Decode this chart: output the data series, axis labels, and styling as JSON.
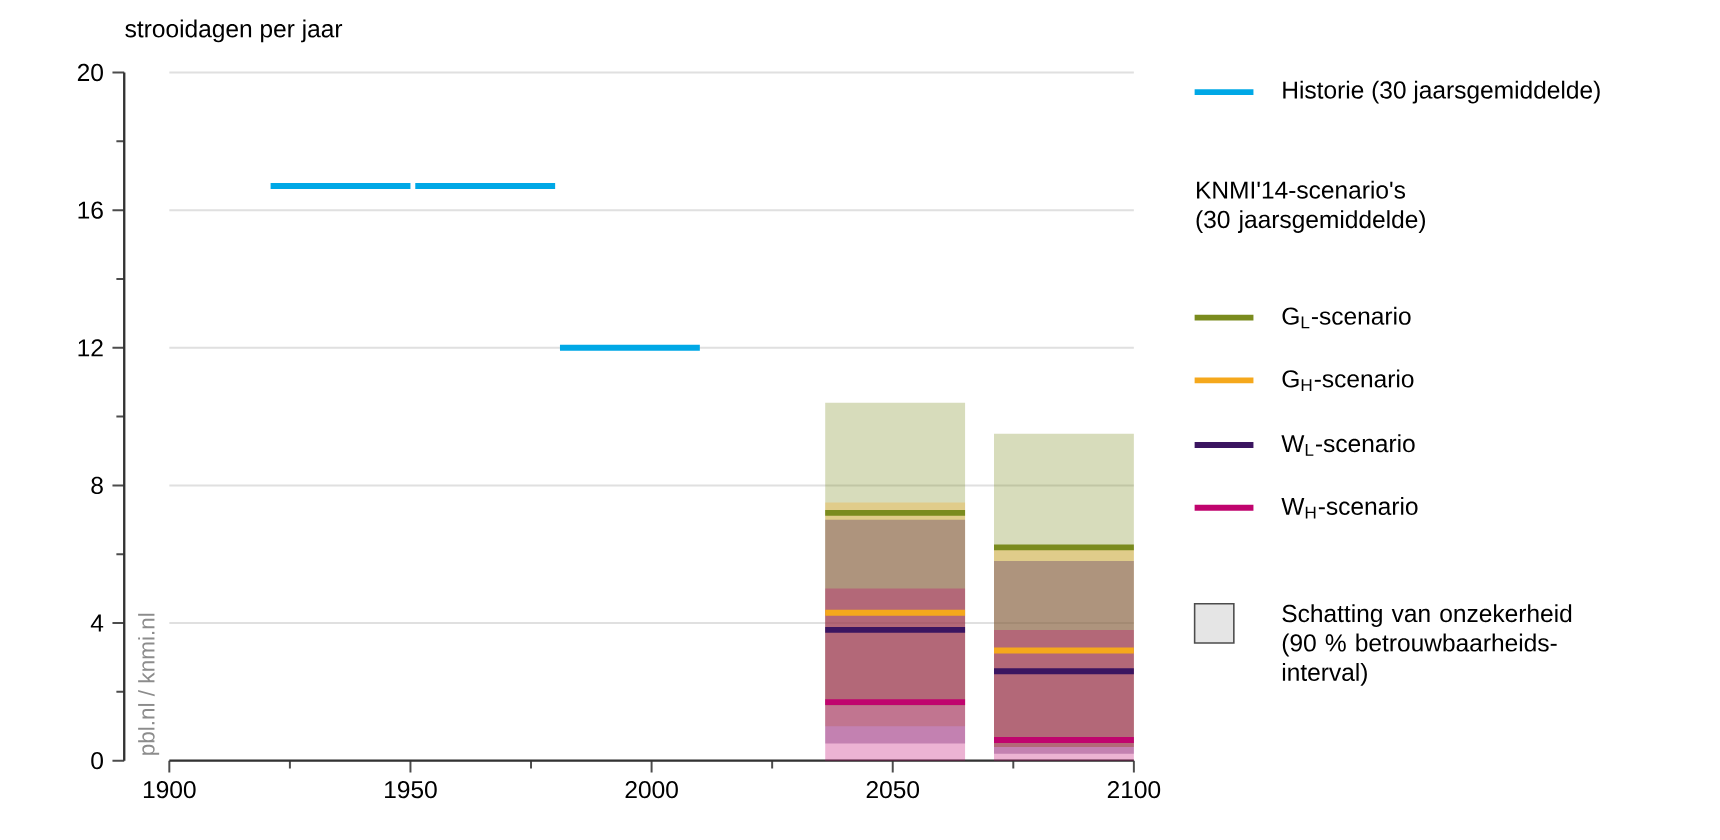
{
  "chart_data": {
    "type": "line",
    "ylabel": "strooidagen per jaar",
    "legend_title": "KNMI'14-scenario's (30 jaarsgemiddelde)",
    "annotations": [
      "Schatting van onzekerheid (90 % betrouwbaarheids-interval)",
      "pbl.nl / knmi.nl"
    ],
    "xlim": [
      1900,
      2100
    ],
    "xticks": [
      1900,
      1950,
      2000,
      2050,
      2100
    ],
    "ylim": [
      0,
      20
    ],
    "yticks": [
      0,
      4,
      8,
      12,
      16,
      20
    ],
    "grid": "y",
    "legend": "right",
    "series": [
      {
        "name": "Historie (30 jaarsgemiddelde)",
        "color": "#00a8e6",
        "x": [
          1921,
          1950,
          1950.5,
          1951,
          1980,
          1980.5,
          1981,
          2010
        ],
        "values": [
          16.7,
          16.7,
          null,
          16.7,
          16.7,
          null,
          12.0,
          12.0
        ]
      },
      {
        "name": "G$_{L}$-scenario",
        "color": "#7a8b1e",
        "x": [
          2036,
          2065,
          2068,
          2071,
          2100
        ],
        "values": [
          7.2,
          7.2,
          null,
          6.2,
          6.2
        ],
        "lower": [
          1.6,
          1.6,
          null,
          0.4,
          0.4
        ],
        "upper": [
          10.4,
          10.4,
          null,
          9.5,
          9.5
        ]
      },
      {
        "name": "G$_{H}$-scenario",
        "color": "#f5a81c",
        "x": [
          2036,
          2065,
          2068,
          2071,
          2100
        ],
        "values": [
          4.3,
          4.3,
          null,
          3.2,
          3.2
        ],
        "lower": [
          1.0,
          1.0,
          null,
          0.4,
          0.4
        ],
        "upper": [
          7.5,
          7.5,
          null,
          6.2,
          6.2
        ]
      },
      {
        "name": "W$_{L}$-scenario",
        "color": "#3b1560",
        "x": [
          2036,
          2065,
          2068,
          2071,
          2100
        ],
        "values": [
          3.8,
          3.8,
          null,
          2.6,
          2.6
        ],
        "lower": [
          0.5,
          0.5,
          null,
          0.2,
          0.2
        ],
        "upper": [
          7.0,
          7.0,
          null,
          5.8,
          5.8
        ]
      },
      {
        "name": "W$_{H}$-scenario",
        "color": "#c0046e",
        "x": [
          2036,
          2065,
          2068,
          2071,
          2100
        ],
        "values": [
          1.7,
          1.7,
          null,
          0.6,
          0.6
        ],
        "lower": [
          0,
          0,
          null,
          0,
          0
        ],
        "upper": [
          5.0,
          5.0,
          null,
          3.8,
          3.8
        ]
      }
    ]
  }
}
